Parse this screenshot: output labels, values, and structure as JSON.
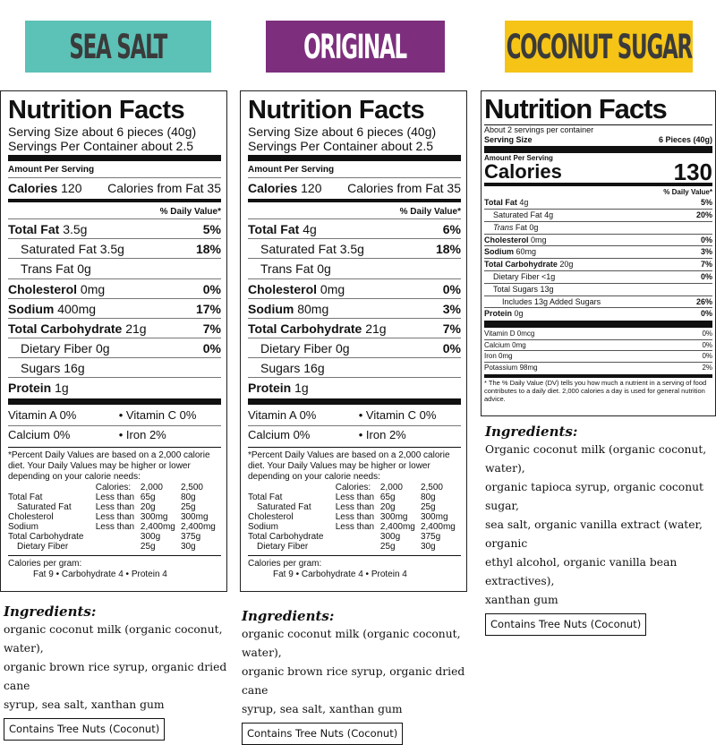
{
  "banners": [
    "SEA SALT",
    "ORIGINAL",
    "COCONUT SUGAR"
  ],
  "colors": {
    "sea_salt": "#5cc1b6",
    "original": "#7d2f7d",
    "coconut_sugar": "#f5c416"
  },
  "label1": {
    "title": "Nutrition Facts",
    "serving_size": "Serving Size about 6 pieces (40g)",
    "servings_per": "Servings Per Container about 2.5",
    "amount_per": "Amount Per Serving",
    "calories": "Calories",
    "calories_val": "120",
    "cal_fat": "Calories from Fat 35",
    "dv_header": "% Daily Value*",
    "total_fat": "Total Fat",
    "total_fat_val": "3.5g",
    "total_fat_pct": "5%",
    "sat_fat": "Saturated Fat 3.5g",
    "sat_fat_pct": "18%",
    "trans_fat": "Trans Fat 0g",
    "chol": "Cholesterol",
    "chol_val": "0mg",
    "chol_pct": "0%",
    "sodium": "Sodium",
    "sodium_val": "400mg",
    "sodium_pct": "17%",
    "carb": "Total Carbohydrate",
    "carb_val": "21g",
    "carb_pct": "7%",
    "fiber": "Dietary Fiber 0g",
    "fiber_pct": "0%",
    "sugars": "Sugars 16g",
    "protein": "Protein",
    "protein_val": "1g",
    "vit_a": "Vitamin A 0%",
    "vit_c": "•   Vitamin C 0%",
    "calcium": "Calcium 0%",
    "iron": "•   Iron 2%",
    "footnote": "*Percent Daily Values are based on a 2,000 calorie diet. Your Daily Values may be higher or lower depending on your calorie needs:",
    "cpg": "Calories per gram:",
    "cpg_vals": "Fat 9   •   Carbohydrate 4   •   Protein 4"
  },
  "label2": {
    "title": "Nutrition Facts",
    "serving_size": "Serving Size about 6 pieces (40g)",
    "servings_per": "Servings Per Container about 2.5",
    "amount_per": "Amount Per Serving",
    "calories": "Calories",
    "calories_val": "120",
    "cal_fat": "Calories from Fat 35",
    "dv_header": "% Daily Value*",
    "total_fat": "Total Fat",
    "total_fat_val": "4g",
    "total_fat_pct": "6%",
    "sat_fat": "Saturated Fat 3.5g",
    "sat_fat_pct": "18%",
    "trans_fat": "Trans Fat 0g",
    "chol": "Cholesterol",
    "chol_val": "0mg",
    "chol_pct": "0%",
    "sodium": "Sodium",
    "sodium_val": "80mg",
    "sodium_pct": "3%",
    "carb": "Total Carbohydrate",
    "carb_val": "21g",
    "carb_pct": "7%",
    "fiber": "Dietary Fiber 0g",
    "fiber_pct": "0%",
    "sugars": "Sugars 16g",
    "protein": "Protein",
    "protein_val": "1g",
    "vit_a": "Vitamin A 0%",
    "vit_c": "•   Vitamin C 0%",
    "calcium": "Calcium 0%",
    "iron": "•   Iron 2%",
    "footnote": "*Percent Daily Values are based on a 2,000 calorie diet. Your Daily Values may be higher or lower depending on your calorie needs:",
    "cpg": "Calories per gram:",
    "cpg_vals": "Fat 9   •   Carbohydrate 4   •   Protein 4"
  },
  "dv_table": [
    [
      "",
      "Calories:",
      "2,000",
      "2,500"
    ],
    [
      "Total Fat",
      "Less than",
      "65g",
      "80g"
    ],
    [
      "  Saturated Fat",
      "Less than",
      "20g",
      "25g"
    ],
    [
      "Cholesterol",
      "Less than",
      "300mg",
      "300mg"
    ],
    [
      "Sodium",
      "Less than",
      "2,400mg",
      "2,400mg"
    ],
    [
      "Total Carbohydrate",
      "",
      "300g",
      "375g"
    ],
    [
      "  Dietary Fiber",
      "",
      "25g",
      "30g"
    ]
  ],
  "label3": {
    "title": "Nutrition Facts",
    "servings": "About 2 servings per container",
    "serving_size": "Serving Size",
    "serving_size_val": "6 Pieces (40g)",
    "amount_per": "Amount Per Serving",
    "calories": "Calories",
    "calories_val": "130",
    "dv_header": "% Daily Value*",
    "rows": [
      {
        "label": "Total Fat",
        "val": "4g",
        "pct": "5%",
        "bold": true,
        "indent": 0
      },
      {
        "label": "Saturated Fat",
        "val": "4g",
        "pct": "20%",
        "bold": false,
        "indent": 1
      },
      {
        "label": "Trans",
        "val": "Fat 0g",
        "pct": "",
        "bold": false,
        "indent": 1,
        "italic": true
      },
      {
        "label": "Cholesterol",
        "val": "0mg",
        "pct": "0%",
        "bold": true,
        "indent": 0
      },
      {
        "label": "Sodium",
        "val": "60mg",
        "pct": "3%",
        "bold": true,
        "indent": 0
      },
      {
        "label": "Total Carbohydrate",
        "val": "20g",
        "pct": "7%",
        "bold": true,
        "indent": 0
      },
      {
        "label": "Dietary Fiber",
        "val": "<1g",
        "pct": "0%",
        "bold": false,
        "indent": 1
      },
      {
        "label": "Total Sugars",
        "val": "13g",
        "pct": "",
        "bold": false,
        "indent": 1
      },
      {
        "label": "Includes 13g Added Sugars",
        "val": "",
        "pct": "26%",
        "bold": false,
        "indent": 2
      },
      {
        "label": "Protein",
        "val": "0g",
        "pct": "0%",
        "bold": true,
        "indent": 0
      }
    ],
    "vitamins": [
      {
        "label": "Vitamin D 0mcg",
        "pct": "0%"
      },
      {
        "label": "Calcium 0mg",
        "pct": "0%"
      },
      {
        "label": "Iron 0mg",
        "pct": "0%"
      },
      {
        "label": "Potassium 98mg",
        "pct": "2%"
      }
    ],
    "footnote": "* The % Daily Value (DV) tells you how much a nutrient in a serving of food contributes to a daily diet. 2,000 calories a day is used for general nutrition advice."
  },
  "ingredients": {
    "title": "Ingredients:",
    "sea_salt": [
      "organic coconut milk (organic coconut, water),",
      "organic brown rice syrup, organic dried cane",
      "syrup, sea salt, xanthan gum"
    ],
    "original": [
      "organic coconut milk (organic coconut, water),",
      "organic brown rice syrup, organic dried cane",
      "syrup, sea salt, xanthan gum"
    ],
    "coconut_sugar": [
      "Organic coconut milk (organic coconut, water),",
      "organic tapioca syrup, organic coconut sugar,",
      "sea salt, organic vanilla extract (water, organic",
      "ethyl alcohol, organic vanilla bean extractives),",
      "xanthan gum"
    ],
    "contains": "Contains Tree Nuts (Coconut)"
  }
}
